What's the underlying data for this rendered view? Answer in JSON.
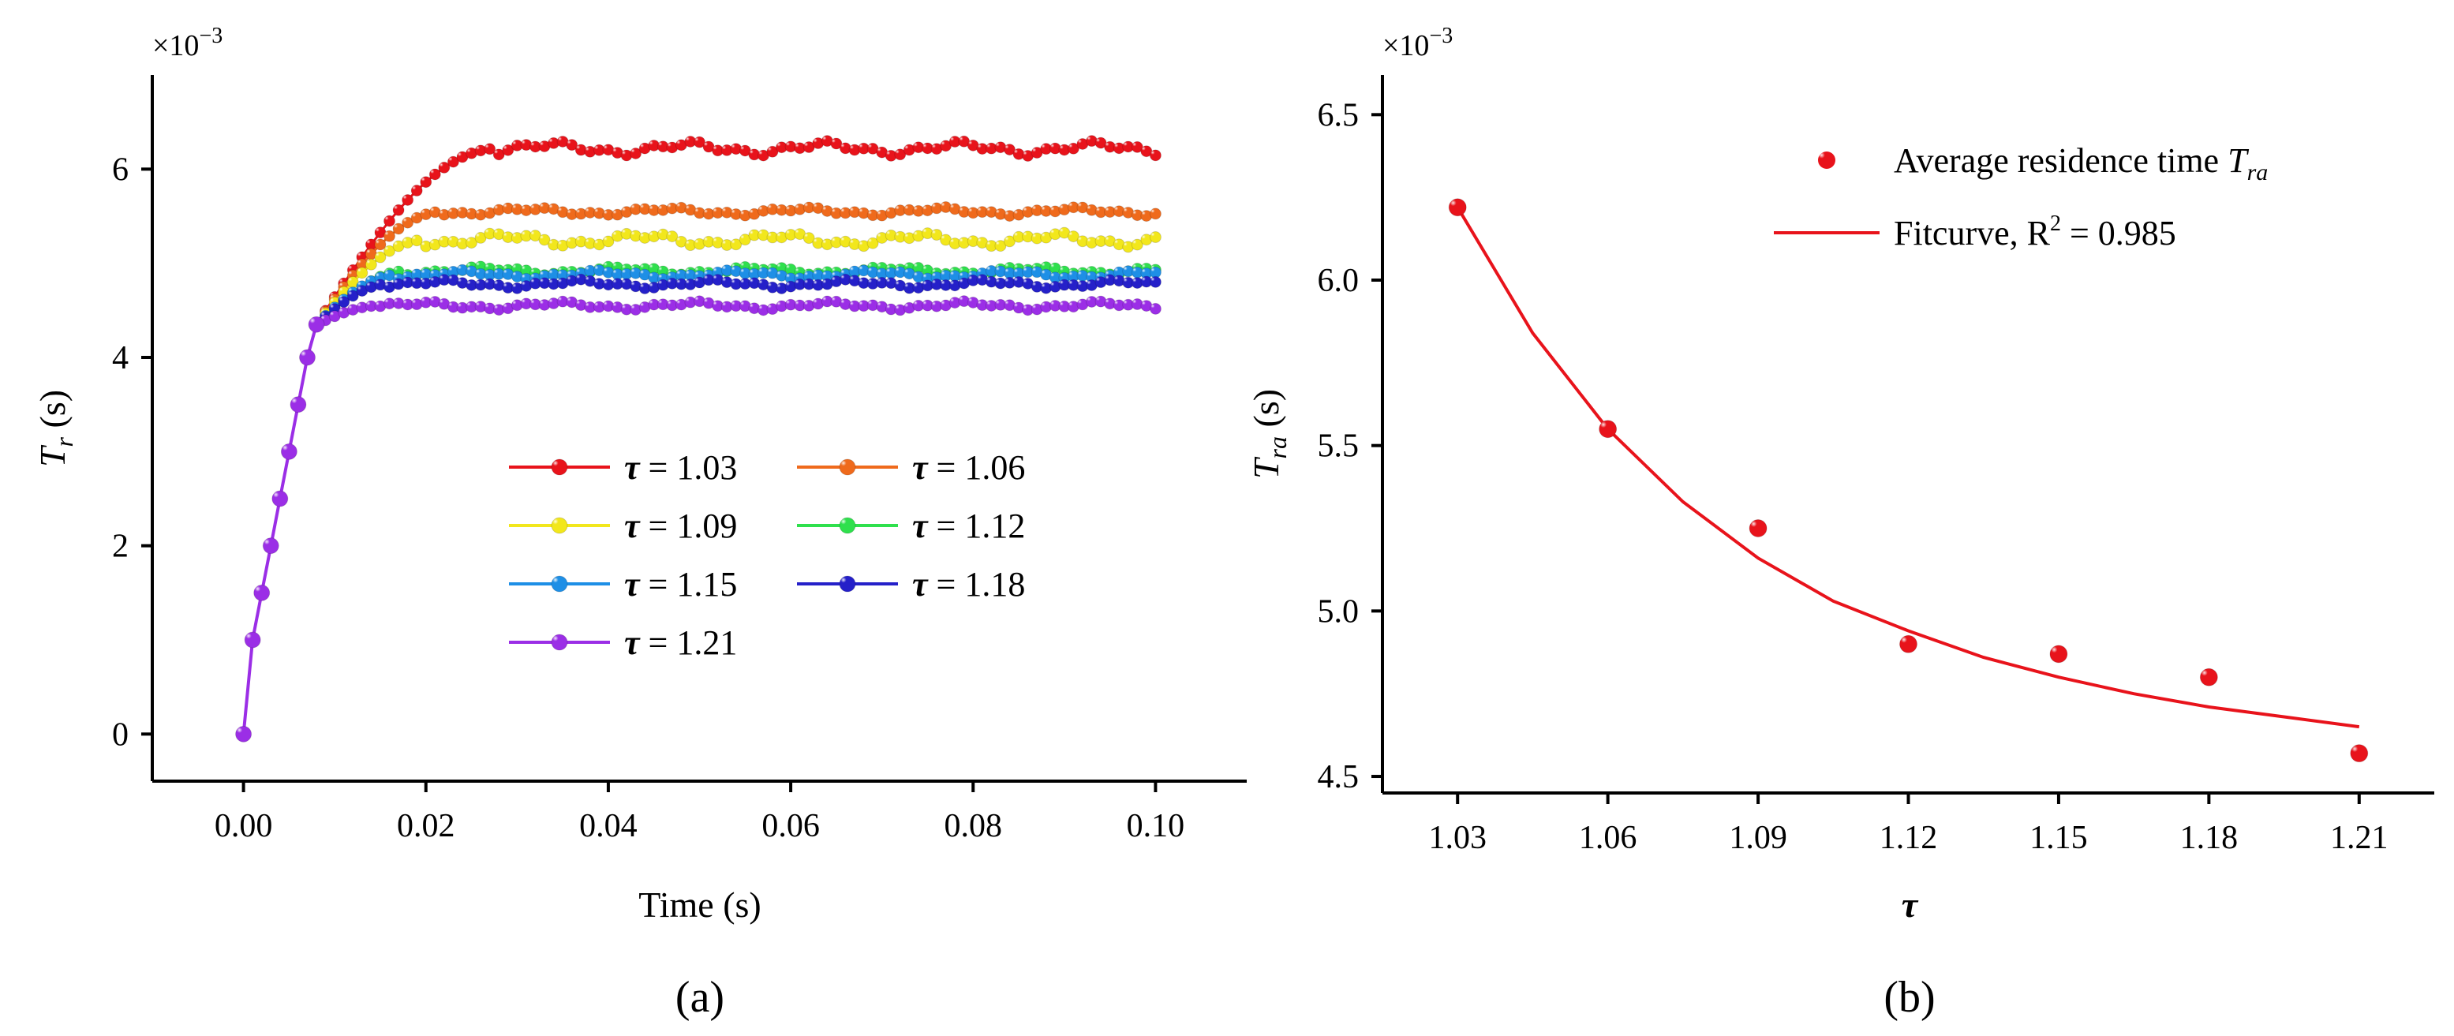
{
  "chart_data": [
    {
      "type": "line",
      "panel_label": "(a)",
      "xlabel": "Time (s)",
      "ylabel_main": "T",
      "ylabel_sub": "r",
      "ylabel_unit": " (s)",
      "y_multiplier_base": "×10",
      "y_multiplier_exp": "−3",
      "xlim": [
        -0.01,
        0.11
      ],
      "ylim": [
        -0.5,
        7.0
      ],
      "xticks": [
        0.0,
        0.02,
        0.04,
        0.06,
        0.08,
        0.1
      ],
      "xtick_labels": [
        "0.00",
        "0.02",
        "0.04",
        "0.06",
        "0.08",
        "0.10"
      ],
      "yticks": [
        0,
        2,
        4,
        6
      ],
      "ytick_labels": [
        "0",
        "2",
        "4",
        "6"
      ],
      "legend_symbol": "τ",
      "legend_position": "center-right",
      "ramp": {
        "x": [
          0.0,
          0.001,
          0.002,
          0.003,
          0.004,
          0.005,
          0.006,
          0.007,
          0.008
        ],
        "y": [
          0.0,
          1.0,
          1.5,
          2.0,
          2.5,
          3.0,
          3.5,
          4.0,
          4.35
        ]
      },
      "series": [
        {
          "name": "τ = 1.03",
          "tau": "1.03",
          "value": " = 1.03",
          "color": "#e8131b",
          "plateau": 6.22,
          "rise_end": 0.028,
          "jitter": 0.05
        },
        {
          "name": "τ = 1.06",
          "tau": "1.06",
          "value": " = 1.06",
          "color": "#ef6a1c",
          "plateau": 5.55,
          "rise_end": 0.022,
          "jitter": 0.03
        },
        {
          "name": "τ = 1.09",
          "tau": "1.09",
          "value": " = 1.09",
          "color": "#f2e71c",
          "plateau": 5.25,
          "rise_end": 0.02,
          "jitter": 0.05
        },
        {
          "name": "τ = 1.12",
          "tau": "1.12",
          "value": " = 1.12",
          "color": "#2fe04d",
          "plateau": 4.92,
          "rise_end": 0.018,
          "jitter": 0.03
        },
        {
          "name": "τ = 1.15",
          "tau": "1.15",
          "value": " = 1.15",
          "color": "#1e8fe6",
          "plateau": 4.88,
          "rise_end": 0.017,
          "jitter": 0.03
        },
        {
          "name": "τ = 1.18",
          "tau": "1.18",
          "value": " = 1.18",
          "color": "#2520c9",
          "plateau": 4.78,
          "rise_end": 0.016,
          "jitter": 0.03
        },
        {
          "name": "τ = 1.21",
          "tau": "1.21",
          "value": " = 1.21",
          "color": "#9b2ee6",
          "plateau": 4.55,
          "rise_end": 0.015,
          "jitter": 0.03
        }
      ],
      "curve_x_end": 0.1,
      "curve_step": 0.001
    },
    {
      "type": "scatter",
      "panel_label": "(b)",
      "xlabel": "τ",
      "ylabel_main": "T",
      "ylabel_sub": "ra",
      "ylabel_unit": " (s)",
      "y_multiplier_base": "×10",
      "y_multiplier_exp": "−3",
      "xlim": [
        1.015,
        1.225
      ],
      "ylim": [
        4.45,
        6.62
      ],
      "xticks": [
        1.03,
        1.06,
        1.09,
        1.12,
        1.15,
        1.18,
        1.21
      ],
      "xtick_labels": [
        "1.03",
        "1.06",
        "1.09",
        "1.12",
        "1.15",
        "1.18",
        "1.21"
      ],
      "yticks": [
        4.5,
        5.0,
        5.5,
        6.0,
        6.5
      ],
      "ytick_labels": [
        "4.5",
        "5.0",
        "5.5",
        "6.0",
        "6.5"
      ],
      "x": [
        1.03,
        1.06,
        1.09,
        1.12,
        1.15,
        1.18,
        1.21
      ],
      "y": [
        6.22,
        5.55,
        5.25,
        4.9,
        4.87,
        4.8,
        4.57
      ],
      "scatter_color": "#e8131b",
      "fit": {
        "color": "#e8131b",
        "x": [
          1.03,
          1.045,
          1.06,
          1.075,
          1.09,
          1.105,
          1.12,
          1.135,
          1.15,
          1.165,
          1.18,
          1.195,
          1.21
        ],
        "y": [
          6.22,
          5.84,
          5.55,
          5.33,
          5.16,
          5.03,
          4.94,
          4.86,
          4.8,
          4.75,
          4.71,
          4.68,
          4.65
        ]
      },
      "legend_position": "top-right",
      "legend": {
        "scatter_label": "Average residence time ",
        "scatter_label_math": "T",
        "scatter_label_sub": "ra",
        "fit_label": "Fitcurve, R",
        "fit_label_sup": "2",
        "fit_label_tail": " = 0.985"
      }
    }
  ]
}
